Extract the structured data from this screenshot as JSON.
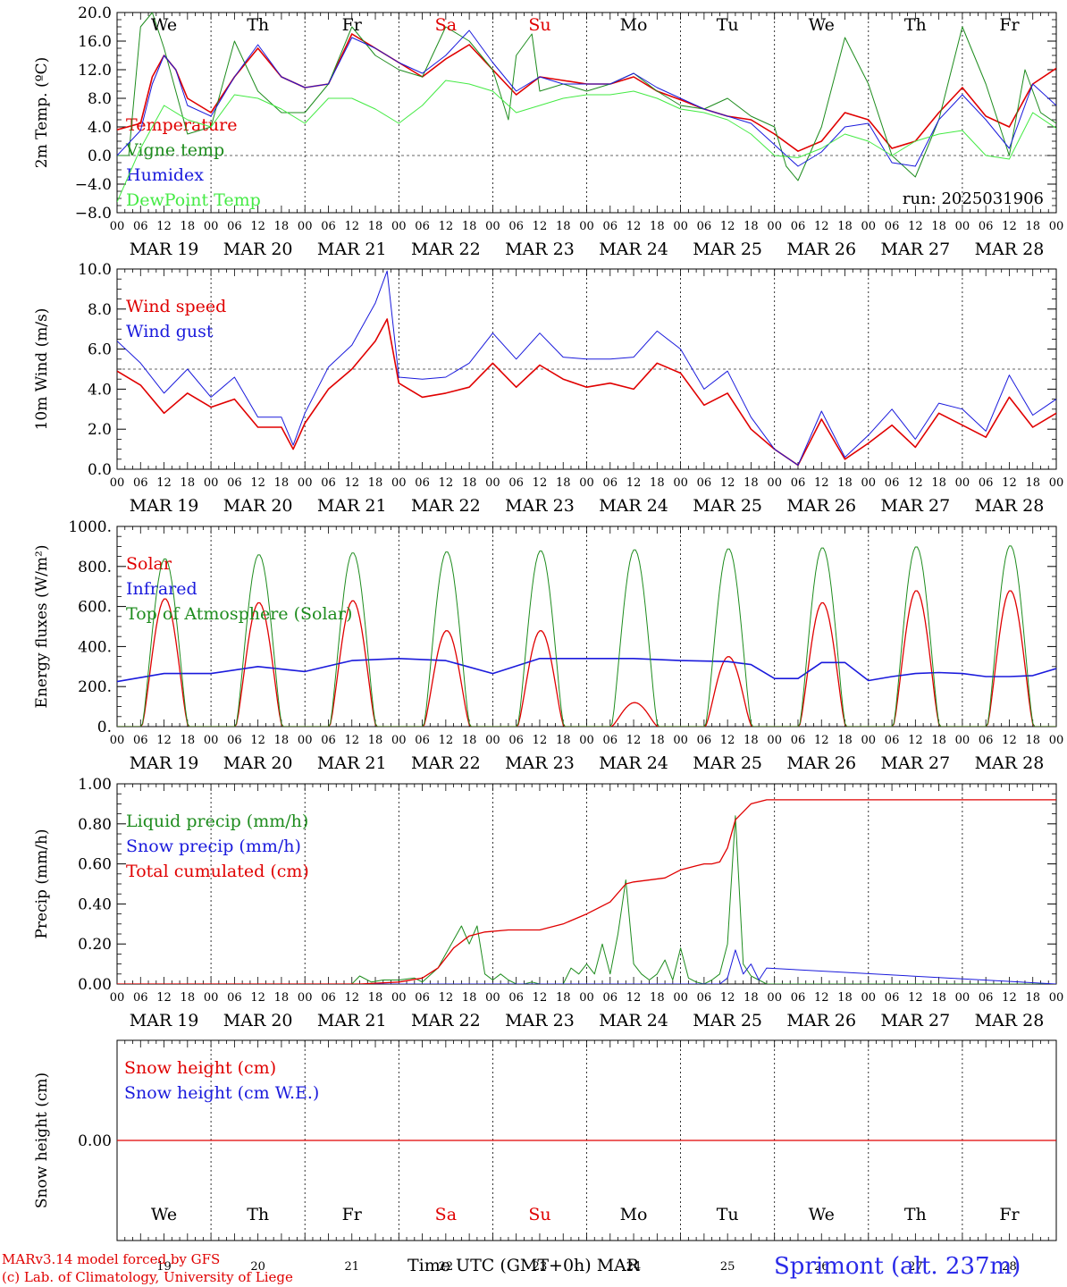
{
  "x_range_hours": [
    0,
    240
  ],
  "day_tick_labels": [
    "00",
    "06",
    "12",
    "18"
  ],
  "day_tick_end": "00",
  "date_labels": [
    "MAR 19",
    "MAR 20",
    "MAR 21",
    "MAR 22",
    "MAR 23",
    "MAR 24",
    "MAR 25",
    "MAR 26",
    "MAR 27",
    "MAR 28"
  ],
  "weekdays": [
    {
      "label": "We",
      "color": "#000000"
    },
    {
      "label": "Th",
      "color": "#000000"
    },
    {
      "label": "Fr",
      "color": "#000000"
    },
    {
      "label": "Sa",
      "color": "#e00000"
    },
    {
      "label": "Su",
      "color": "#e00000"
    },
    {
      "label": "Mo",
      "color": "#000000"
    },
    {
      "label": "Tu",
      "color": "#000000"
    },
    {
      "label": "We",
      "color": "#000000"
    },
    {
      "label": "Th",
      "color": "#000000"
    },
    {
      "label": "Fr",
      "color": "#000000"
    }
  ],
  "day_numbers": [
    "19",
    "20",
    "21",
    "22",
    "23",
    "24",
    "25",
    "26",
    "27",
    "28"
  ],
  "chart_data": [
    {
      "type": "line",
      "ylabel": "2m Temp. (ºC)",
      "ylim": [
        -8,
        20
      ],
      "yticks": [
        {
          "v": 20,
          "label": "20.0"
        },
        {
          "v": 16,
          "label": "16.0"
        },
        {
          "v": 12,
          "label": "12.0"
        },
        {
          "v": 8,
          "label": "8.0"
        },
        {
          "v": 4,
          "label": "4.0"
        },
        {
          "v": 0,
          "label": "0.0"
        },
        {
          "v": -4,
          "label": "−4.0"
        },
        {
          "v": -8,
          "label": "−8.0"
        }
      ],
      "reference_line": 0,
      "show_weekdays": true,
      "annotation": "run: 2025031906",
      "series": [
        {
          "name": "Temperature",
          "color": "#e00000",
          "width": 1.6,
          "x": [
            0,
            6,
            9,
            12,
            15,
            18,
            24,
            30,
            36,
            42,
            48,
            54,
            60,
            66,
            72,
            78,
            84,
            90,
            96,
            102,
            108,
            114,
            120,
            126,
            132,
            138,
            144,
            150,
            156,
            162,
            168,
            174,
            180,
            186,
            192,
            198,
            204,
            210,
            216,
            222,
            228,
            234,
            240
          ],
          "y": [
            3.6,
            4.5,
            11,
            14,
            12,
            8,
            6,
            11,
            15,
            11,
            9.5,
            10,
            17,
            15,
            13,
            11,
            13.5,
            15.5,
            12,
            8.5,
            11,
            10.5,
            10,
            10,
            11,
            9,
            7.8,
            6.5,
            5.5,
            5,
            3,
            0.6,
            2,
            6,
            5,
            1,
            2,
            6,
            9.5,
            5.5,
            4,
            10,
            12.2
          ]
        },
        {
          "name": "Vigne temp",
          "color": "#1e8c1e",
          "width": 1.0,
          "x": [
            0,
            3,
            6,
            9,
            12,
            15,
            18,
            24,
            30,
            36,
            42,
            48,
            54,
            60,
            66,
            72,
            78,
            84,
            90,
            96,
            100,
            102,
            106,
            108,
            114,
            120,
            126,
            132,
            138,
            144,
            150,
            156,
            162,
            168,
            171,
            174,
            180,
            186,
            192,
            198,
            204,
            210,
            216,
            222,
            228,
            232,
            236,
            240
          ],
          "y": [
            0,
            0,
            18,
            20,
            15,
            9,
            3,
            4,
            16,
            9,
            6,
            6,
            10,
            18,
            14,
            12,
            11,
            18,
            16,
            12,
            5,
            14,
            17,
            9,
            10,
            9,
            10,
            11.5,
            9,
            7,
            6.5,
            8,
            5.5,
            4,
            -1.5,
            -3.5,
            4,
            16.5,
            10,
            0,
            -3,
            5,
            18,
            10,
            0,
            12,
            6,
            4.5
          ]
        },
        {
          "name": "Humidex",
          "color": "#1a1adc",
          "width": 1.0,
          "x": [
            0,
            6,
            9,
            12,
            15,
            18,
            24,
            30,
            36,
            42,
            48,
            54,
            60,
            66,
            72,
            78,
            84,
            90,
            96,
            102,
            108,
            114,
            120,
            126,
            132,
            138,
            144,
            150,
            156,
            162,
            168,
            174,
            180,
            186,
            192,
            198,
            204,
            210,
            216,
            222,
            228,
            234,
            240
          ],
          "y": [
            0,
            3.5,
            10,
            14,
            12,
            7,
            5.5,
            11,
            15.5,
            11,
            9.5,
            10,
            16.5,
            15,
            13,
            11.5,
            14,
            17.5,
            13,
            9,
            11,
            10,
            10,
            10,
            11.5,
            9.5,
            8,
            6.5,
            5.5,
            4.5,
            1.5,
            -1.5,
            0.5,
            4,
            4.5,
            -1,
            -1.5,
            5,
            8.5,
            5,
            1,
            10,
            7
          ]
        },
        {
          "name": "DewPoint Temp",
          "color": "#44ea44",
          "width": 1.0,
          "x": [
            0,
            6,
            12,
            18,
            24,
            30,
            36,
            42,
            48,
            54,
            60,
            66,
            72,
            78,
            84,
            90,
            96,
            102,
            108,
            114,
            120,
            126,
            132,
            138,
            144,
            150,
            156,
            162,
            168,
            174,
            180,
            186,
            192,
            198,
            204,
            210,
            216,
            222,
            228,
            234,
            240
          ],
          "y": [
            -6.5,
            1,
            7,
            5,
            4,
            8.5,
            8,
            6.5,
            4.5,
            8,
            8,
            6.5,
            4.5,
            7,
            10.5,
            10,
            9,
            6,
            7,
            8,
            8.5,
            8.5,
            9,
            8,
            6.5,
            6,
            5,
            3,
            0,
            -0.3,
            1,
            3,
            2,
            0,
            2,
            3,
            3.5,
            0,
            -0.5,
            6,
            3.8
          ]
        }
      ]
    },
    {
      "type": "line",
      "ylabel": "10m Wind (m/s)",
      "ylim": [
        0,
        10
      ],
      "yticks": [
        {
          "v": 10,
          "label": "10.0"
        },
        {
          "v": 8,
          "label": "8.0"
        },
        {
          "v": 6,
          "label": "6.0"
        },
        {
          "v": 4,
          "label": "4.0"
        },
        {
          "v": 2,
          "label": "2.0"
        },
        {
          "v": 0,
          "label": "0.0"
        }
      ],
      "reference_line": 5,
      "show_weekdays": false,
      "series": [
        {
          "name": "Wind speed",
          "color": "#e00000",
          "width": 1.6,
          "x": [
            0,
            6,
            12,
            18,
            24,
            30,
            36,
            42,
            45,
            48,
            54,
            60,
            66,
            69,
            72,
            78,
            84,
            90,
            96,
            102,
            108,
            114,
            120,
            126,
            132,
            138,
            144,
            150,
            156,
            162,
            168,
            174,
            180,
            186,
            192,
            198,
            204,
            210,
            216,
            222,
            228,
            234,
            240
          ],
          "y": [
            4.9,
            4.2,
            2.8,
            3.8,
            3.1,
            3.5,
            2.1,
            2.1,
            1.0,
            2.3,
            4.0,
            5.0,
            6.4,
            7.5,
            4.3,
            3.6,
            3.8,
            4.1,
            5.3,
            4.1,
            5.2,
            4.5,
            4.1,
            4.3,
            4.0,
            5.3,
            4.8,
            3.2,
            3.8,
            2.0,
            1.0,
            0.2,
            2.5,
            0.5,
            1.3,
            2.2,
            1.1,
            2.8,
            2.2,
            1.6,
            3.6,
            2.1,
            2.8
          ]
        },
        {
          "name": "Wind gust",
          "color": "#1a1adc",
          "width": 1.0,
          "x": [
            0,
            6,
            12,
            18,
            24,
            30,
            36,
            42,
            45,
            48,
            54,
            60,
            66,
            69,
            72,
            78,
            84,
            90,
            96,
            102,
            108,
            114,
            120,
            126,
            132,
            138,
            144,
            150,
            156,
            162,
            168,
            174,
            180,
            186,
            192,
            198,
            204,
            210,
            216,
            222,
            228,
            234,
            240
          ],
          "y": [
            6.4,
            5.3,
            3.8,
            5.0,
            3.6,
            4.6,
            2.6,
            2.6,
            1.2,
            2.8,
            5.1,
            6.2,
            8.3,
            9.9,
            4.6,
            4.5,
            4.6,
            5.3,
            6.8,
            5.5,
            6.8,
            5.6,
            5.5,
            5.5,
            5.6,
            6.9,
            6.0,
            4.0,
            4.9,
            2.6,
            1.0,
            0.2,
            2.9,
            0.6,
            1.7,
            3.0,
            1.5,
            3.3,
            3.0,
            1.9,
            4.7,
            2.7,
            3.5
          ]
        }
      ]
    },
    {
      "type": "line",
      "ylabel": "Energy fluxes (W/m²)",
      "ylim": [
        0,
        1000
      ],
      "yticks": [
        {
          "v": 1000,
          "label": "1000."
        },
        {
          "v": 800,
          "label": "800."
        },
        {
          "v": 600,
          "label": "600."
        },
        {
          "v": 400,
          "label": "400."
        },
        {
          "v": 200,
          "label": "200."
        },
        {
          "v": 0,
          "label": "0."
        }
      ],
      "reference_line": null,
      "show_weekdays": false,
      "diurnal": {
        "sunrise_hour": 6.3,
        "sunset_hour": 18.2,
        "peak_hour": 12.25
      },
      "series": [
        {
          "name": "Solar",
          "color": "#e00000",
          "width": 1.3,
          "daily_peaks": [
            640,
            620,
            630,
            480,
            480,
            120,
            350,
            620,
            680,
            680
          ]
        },
        {
          "name": "Infrared",
          "color": "#1a1adc",
          "width": 1.6,
          "x": [
            0,
            12,
            24,
            36,
            48,
            60,
            72,
            84,
            96,
            108,
            120,
            132,
            144,
            156,
            162,
            168,
            174,
            180,
            186,
            192,
            198,
            204,
            210,
            216,
            222,
            228,
            234,
            240
          ],
          "y": [
            225,
            265,
            265,
            300,
            275,
            330,
            340,
            330,
            265,
            340,
            340,
            340,
            330,
            325,
            310,
            240,
            240,
            320,
            320,
            230,
            250,
            265,
            270,
            265,
            250,
            250,
            255,
            290
          ]
        },
        {
          "name": "Top of Atmosphere (Solar)",
          "color": "#1e8c1e",
          "width": 1.0,
          "daily_peaks": [
            840,
            860,
            870,
            875,
            880,
            885,
            890,
            895,
            900,
            905
          ]
        }
      ]
    },
    {
      "type": "line",
      "ylabel": "Precip (mm/h)",
      "ylim": [
        0,
        1
      ],
      "yticks": [
        {
          "v": 1.0,
          "label": "1.00"
        },
        {
          "v": 0.8,
          "label": "0.80"
        },
        {
          "v": 0.6,
          "label": "0.60"
        },
        {
          "v": 0.4,
          "label": "0.40"
        },
        {
          "v": 0.2,
          "label": "0.20"
        },
        {
          "v": 0.0,
          "label": "0.00"
        }
      ],
      "reference_line": null,
      "show_weekdays": false,
      "series": [
        {
          "name": "Liquid precip (mm/h)",
          "color": "#1e8c1e",
          "width": 1.0,
          "x": [
            0,
            60,
            62,
            65,
            68,
            72,
            76,
            78,
            82,
            84,
            86,
            88,
            90,
            92,
            94,
            96,
            98,
            100,
            102,
            104,
            106,
            108,
            114,
            116,
            118,
            120,
            122,
            124,
            126,
            128,
            130,
            132,
            134,
            136,
            138,
            140,
            142,
            144,
            146,
            148,
            150,
            152,
            154,
            156,
            158,
            160,
            162,
            166,
            240
          ],
          "y": [
            0,
            0,
            0.04,
            0.01,
            0.02,
            0.02,
            0.03,
            0.01,
            0.08,
            0.15,
            0.22,
            0.29,
            0.2,
            0.29,
            0.05,
            0.02,
            0.05,
            0.02,
            0.0,
            0.0,
            0.01,
            0.0,
            0.0,
            0.08,
            0.05,
            0.1,
            0.05,
            0.2,
            0.05,
            0.25,
            0.52,
            0.1,
            0.05,
            0.02,
            0.05,
            0.12,
            0.02,
            0.18,
            0.03,
            0.01,
            0.0,
            0.02,
            0.05,
            0.2,
            0.84,
            0.1,
            0.04,
            0.0,
            0.0
          ]
        },
        {
          "name": "Snow precip (mm/h)",
          "color": "#1a1adc",
          "width": 1.0,
          "x": [
            0,
            154,
            156,
            158,
            160,
            162,
            164,
            166,
            240
          ],
          "y": [
            0,
            0,
            0.03,
            0.17,
            0.05,
            0.1,
            0.02,
            0.08,
            0
          ]
        },
        {
          "name": "Total cumulated (cm)",
          "color": "#e00000",
          "width": 1.3,
          "x": [
            0,
            62,
            72,
            78,
            82,
            86,
            90,
            94,
            100,
            108,
            114,
            120,
            126,
            130,
            132,
            140,
            144,
            148,
            150,
            152,
            154,
            156,
            158,
            162,
            166,
            240
          ],
          "y": [
            0,
            0,
            0.01,
            0.03,
            0.08,
            0.18,
            0.24,
            0.26,
            0.27,
            0.27,
            0.3,
            0.35,
            0.41,
            0.5,
            0.51,
            0.53,
            0.57,
            0.59,
            0.6,
            0.6,
            0.61,
            0.68,
            0.82,
            0.9,
            0.92,
            0.92
          ]
        }
      ]
    },
    {
      "type": "line",
      "ylabel": "Snow height (cm)",
      "ylim": [
        -1,
        1
      ],
      "yticks": [
        {
          "v": 0,
          "label": "0.00"
        }
      ],
      "reference_line": null,
      "show_weekdays": false,
      "bottom_weekdays": true,
      "series": [
        {
          "name": "Snow height (cm)",
          "color": "#e00000",
          "width": 1.3,
          "x": [
            0,
            240
          ],
          "y": [
            0,
            0
          ]
        },
        {
          "name": "Snow height (cm W.E.)",
          "color": "#1a1adc",
          "width": 0,
          "x": [],
          "y": []
        }
      ]
    }
  ],
  "footer": {
    "model": "MARv3.14 model forced by GFS",
    "lab": "(c) Lab. of Climatology, University of Liege",
    "xlabel": "Time UTC (GMT+0h) MAR",
    "station": "Sprimont (alt. 237m)",
    "station_color": "#2a2ae8"
  }
}
